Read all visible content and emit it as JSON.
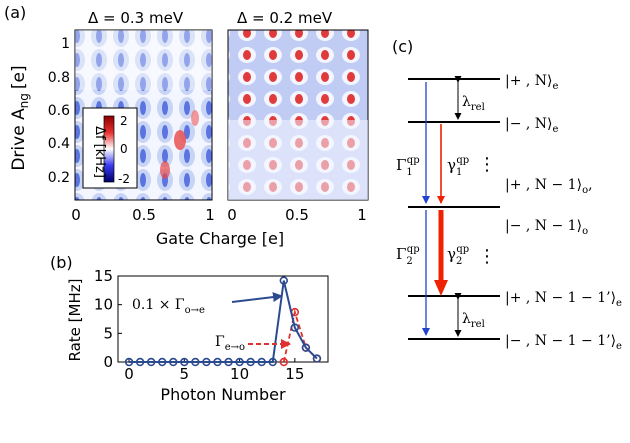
{
  "figure": {
    "panel_a": {
      "label": "(a)",
      "left_title": "Δ = 0.3 meV",
      "right_title": "Δ = 0.2 meV",
      "ylabel": "Drive A",
      "ylabel_sub": "ng",
      "ylabel_unit": "[e]",
      "xlabel": "Gate Charge [e]",
      "y_ticks": [
        "1",
        "0.8",
        "0.6",
        "0.4",
        "0.2"
      ],
      "x_ticks_left": [
        "0",
        "0.5",
        "1"
      ],
      "x_ticks_right": [
        "0",
        "0.5",
        "1"
      ],
      "colorbar_label": "Δf [kHz]",
      "colorbar_ticks": [
        "2",
        "0",
        "-2"
      ],
      "colors": {
        "high": "#c8102e",
        "mid": "#ffffff",
        "low": "#1b1bd6"
      }
    },
    "panel_b": {
      "label": "(b)",
      "xlabel": "Photon Number",
      "ylabel": "Rate [MHz]",
      "x_ticks": [
        "0",
        "5",
        "10",
        "15"
      ],
      "y_ticks": [
        "0",
        "5",
        "10",
        "15"
      ],
      "annotation_blue": "0.1 × Γ",
      "annotation_blue_sub": "o→e",
      "annotation_red": "Γ",
      "annotation_red_sub": "e→o"
    },
    "panel_c": {
      "label": "(c)",
      "levels": [
        {
          "ket": "|+ , N⟩",
          "sub": "e"
        },
        {
          "ket": "|− , N⟩",
          "sub": "e"
        },
        {
          "ket": "|+ , N − 1⟩",
          "sub": "o",
          "tail": ","
        },
        {
          "ket": "|− , N − 1⟩",
          "sub": "o"
        },
        {
          "ket": "|+ , N − 1 − 1’⟩",
          "sub": "e"
        },
        {
          "ket": "|− , N − 1 − 1’⟩",
          "sub": "e"
        }
      ],
      "lambda_label": "λ",
      "lambda_sub": "rel",
      "gamma1": "Γ",
      "gamma1_sub": "1",
      "gamma1_sup": "qp",
      "gamma2": "Γ",
      "gamma2_sub": "2",
      "gamma2_sup": "qp",
      "small_gamma1": "γ",
      "small_gamma1_sub": "1",
      "small_gamma1_sup": "qp",
      "small_gamma2": "γ",
      "small_gamma2_sub": "2",
      "small_gamma2_sup": "qp",
      "dots": "⋮",
      "colors": {
        "blue": "#2244cc",
        "red": "#ee2200"
      }
    }
  },
  "chart_data": {
    "type": "line",
    "xlabel": "Photon Number",
    "ylabel": "Rate [MHz]",
    "xlim": [
      -1,
      18
    ],
    "ylim": [
      0,
      15
    ],
    "series": [
      {
        "name": "0.1 × Γo→e",
        "color": "#2b4a8f",
        "x": [
          0,
          1,
          2,
          3,
          4,
          5,
          6,
          7,
          8,
          9,
          10,
          11,
          12,
          13,
          14,
          15,
          16,
          17
        ],
        "y": [
          0,
          0,
          0,
          0,
          0,
          0,
          0,
          0,
          0,
          0,
          0,
          0,
          0,
          0,
          14.2,
          6.0,
          2.5,
          0.6
        ]
      },
      {
        "name": "Γe→o",
        "color": "#e03030",
        "x": [
          14,
          15,
          16,
          17
        ],
        "y": [
          0,
          8.7,
          2.5,
          0.6
        ]
      }
    ]
  }
}
